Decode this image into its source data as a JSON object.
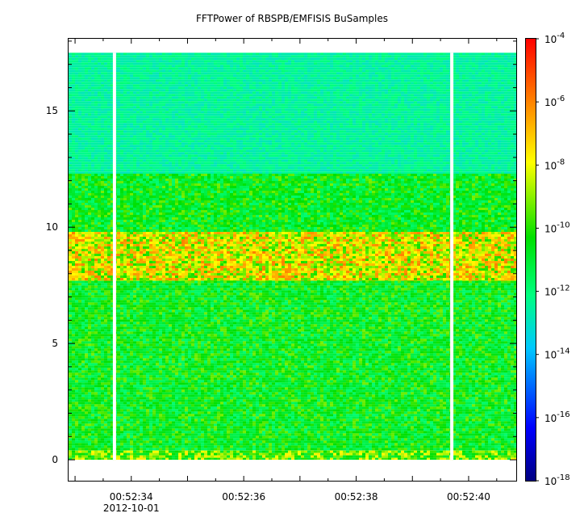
{
  "chart_data": {
    "type": "heatmap",
    "title": "FFTPower of RBSPB/EMFISIS  BuSamples",
    "xlabel": "",
    "ylabel": "",
    "x_ticks": [
      "00:52:34",
      "00:52:36",
      "00:52:38",
      "00:52:40"
    ],
    "x_tick_extra_label": "2012-10-01",
    "y_ticks": [
      0,
      5,
      10,
      15
    ],
    "ylim": [
      -0.9,
      18.1
    ],
    "colorbar": {
      "scale": "log",
      "range": [
        1e-18,
        0.0001
      ],
      "ticks": [
        {
          "base": "10",
          "exp": "-4"
        },
        {
          "base": "10",
          "exp": "-6"
        },
        {
          "base": "10",
          "exp": "-8"
        },
        {
          "base": "10",
          "exp": "-10"
        },
        {
          "base": "10",
          "exp": "-12"
        },
        {
          "base": "10",
          "exp": "-14"
        },
        {
          "base": "10",
          "exp": "-16"
        },
        {
          "base": "10",
          "exp": "-18"
        }
      ],
      "colormap": [
        "#000080",
        "#0000ff",
        "#00c8ff",
        "#00ff80",
        "#00e000",
        "#ffff00",
        "#ff8000",
        "#ff0000"
      ]
    },
    "frequency_bands": [
      {
        "from": 0,
        "to": 0.4,
        "level": "high"
      },
      {
        "from": 0.4,
        "to": 7.7,
        "level": "medium"
      },
      {
        "from": 7.7,
        "to": 9.8,
        "level": "peak"
      },
      {
        "from": 9.8,
        "to": 12.3,
        "level": "medium"
      },
      {
        "from": 12.3,
        "to": 17.5,
        "level": "low"
      }
    ],
    "data_gaps": [
      "00:52:33.7",
      "00:52:39.7"
    ]
  }
}
